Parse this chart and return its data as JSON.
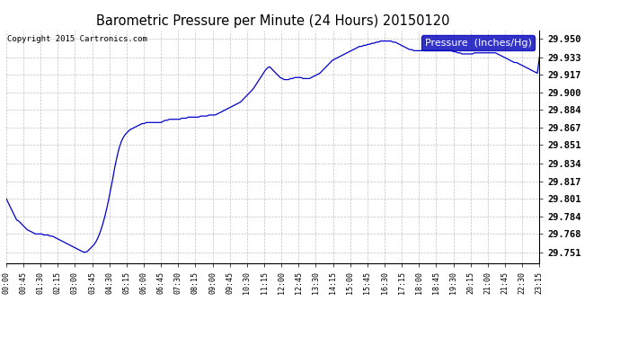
{
  "title": "Barometric Pressure per Minute (24 Hours) 20150120",
  "copyright": "Copyright 2015 Cartronics.com",
  "legend_label": "Pressure  (Inches/Hg)",
  "line_color": "#0000cc",
  "legend_bg": "#0000bb",
  "legend_text_color": "#ffffff",
  "background_color": "#ffffff",
  "grid_color": "#bbbbbb",
  "yticks": [
    29.751,
    29.768,
    29.784,
    29.801,
    29.817,
    29.834,
    29.851,
    29.867,
    29.884,
    29.9,
    29.917,
    29.933,
    29.95
  ],
  "ylim": [
    29.741,
    29.958
  ],
  "xtick_labels": [
    "00:00",
    "00:45",
    "01:30",
    "02:15",
    "03:00",
    "03:45",
    "04:30",
    "05:15",
    "06:00",
    "06:45",
    "07:30",
    "08:15",
    "09:00",
    "09:45",
    "10:30",
    "11:15",
    "12:00",
    "12:45",
    "13:30",
    "14:15",
    "15:00",
    "15:45",
    "16:30",
    "17:15",
    "18:00",
    "18:45",
    "19:30",
    "20:15",
    "21:00",
    "21:45",
    "22:30",
    "23:15"
  ],
  "pressure_data": [
    29.801,
    29.797,
    29.793,
    29.789,
    29.785,
    29.781,
    29.78,
    29.778,
    29.776,
    29.774,
    29.772,
    29.771,
    29.77,
    29.769,
    29.768,
    29.768,
    29.768,
    29.768,
    29.767,
    29.767,
    29.767,
    29.766,
    29.766,
    29.765,
    29.764,
    29.763,
    29.762,
    29.761,
    29.76,
    29.759,
    29.758,
    29.757,
    29.756,
    29.755,
    29.754,
    29.753,
    29.752,
    29.751,
    29.751,
    29.752,
    29.754,
    29.756,
    29.758,
    29.761,
    29.765,
    29.77,
    29.776,
    29.783,
    29.791,
    29.8,
    29.81,
    29.82,
    29.831,
    29.84,
    29.848,
    29.854,
    29.858,
    29.861,
    29.863,
    29.865,
    29.866,
    29.867,
    29.868,
    29.869,
    29.87,
    29.871,
    29.871,
    29.872,
    29.872,
    29.872,
    29.872,
    29.872,
    29.872,
    29.872,
    29.872,
    29.873,
    29.874,
    29.874,
    29.875,
    29.875,
    29.875,
    29.875,
    29.875,
    29.875,
    29.876,
    29.876,
    29.876,
    29.877,
    29.877,
    29.877,
    29.877,
    29.877,
    29.877,
    29.878,
    29.878,
    29.878,
    29.878,
    29.879,
    29.879,
    29.879,
    29.879,
    29.88,
    29.881,
    29.882,
    29.883,
    29.884,
    29.885,
    29.886,
    29.887,
    29.888,
    29.889,
    29.89,
    29.891,
    29.893,
    29.895,
    29.897,
    29.899,
    29.901,
    29.903,
    29.906,
    29.909,
    29.912,
    29.915,
    29.918,
    29.921,
    29.923,
    29.924,
    29.922,
    29.92,
    29.918,
    29.916,
    29.914,
    29.913,
    29.912,
    29.912,
    29.912,
    29.913,
    29.913,
    29.914,
    29.914,
    29.914,
    29.914,
    29.913,
    29.913,
    29.913,
    29.913,
    29.914,
    29.915,
    29.916,
    29.917,
    29.918,
    29.92,
    29.922,
    29.924,
    29.926,
    29.928,
    29.93,
    29.931,
    29.932,
    29.933,
    29.934,
    29.935,
    29.936,
    29.937,
    29.938,
    29.939,
    29.94,
    29.941,
    29.942,
    29.943,
    29.943,
    29.944,
    29.944,
    29.945,
    29.945,
    29.946,
    29.946,
    29.947,
    29.947,
    29.948,
    29.948,
    29.948,
    29.948,
    29.948,
    29.948,
    29.947,
    29.947,
    29.946,
    29.945,
    29.944,
    29.943,
    29.942,
    29.941,
    29.94,
    29.94,
    29.939,
    29.939,
    29.939,
    29.939,
    29.939,
    29.939,
    29.939,
    29.939,
    29.939,
    29.939,
    29.939,
    29.939,
    29.939,
    29.939,
    29.939,
    29.939,
    29.939,
    29.939,
    29.939,
    29.938,
    29.938,
    29.937,
    29.937,
    29.936,
    29.936,
    29.936,
    29.936,
    29.936,
    29.936,
    29.937,
    29.937,
    29.937,
    29.937,
    29.937,
    29.937,
    29.937,
    29.937,
    29.937,
    29.937,
    29.937,
    29.936,
    29.935,
    29.934,
    29.933,
    29.932,
    29.931,
    29.93,
    29.929,
    29.928,
    29.928,
    29.927,
    29.926,
    29.925,
    29.924,
    29.923,
    29.922,
    29.921,
    29.92,
    29.919,
    29.918,
    29.933
  ]
}
